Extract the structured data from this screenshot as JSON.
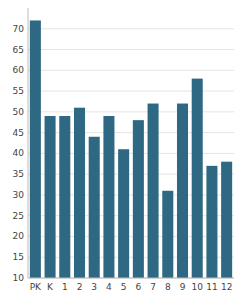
{
  "chart_data": {
    "type": "bar",
    "categories": [
      "PK",
      "K",
      "1",
      "2",
      "3",
      "4",
      "5",
      "6",
      "7",
      "8",
      "9",
      "10",
      "11",
      "12"
    ],
    "values": [
      72,
      49,
      49,
      51,
      44,
      49,
      41,
      48,
      52,
      31,
      52,
      58,
      37,
      38
    ],
    "color": "#2e6882",
    "ylim": [
      10,
      75
    ],
    "yticks": [
      10,
      15,
      20,
      25,
      30,
      35,
      40,
      45,
      50,
      55,
      60,
      65,
      70
    ],
    "grid": true
  }
}
